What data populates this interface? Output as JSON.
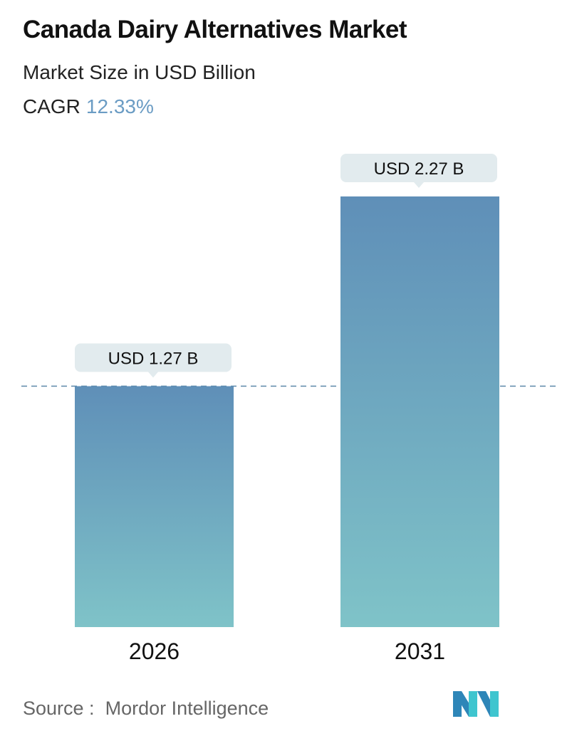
{
  "chart_data": {
    "type": "bar",
    "title": "Canada Dairy Alternatives Market",
    "subtitle": "Market Size in USD Billion",
    "cagr_label": "CAGR",
    "cagr_value": "12.33%",
    "categories": [
      "2026",
      "2031"
    ],
    "values": [
      1.27,
      2.27
    ],
    "data_labels": [
      "USD 1.27 B",
      "USD 2.27 B"
    ],
    "ylim": [
      0,
      2.27
    ],
    "grid": false,
    "reference_line": 1.27,
    "colors": {
      "bar_top": "#5f8fb8",
      "bar_bottom": "#7fc3c8",
      "label_bg": "#e2ebee",
      "cagr": "#6b9cc4",
      "dash": "#5a87a8"
    }
  },
  "source": {
    "label": "Source :",
    "name": "Mordor Intelligence"
  },
  "logo": {
    "text": "MI"
  }
}
